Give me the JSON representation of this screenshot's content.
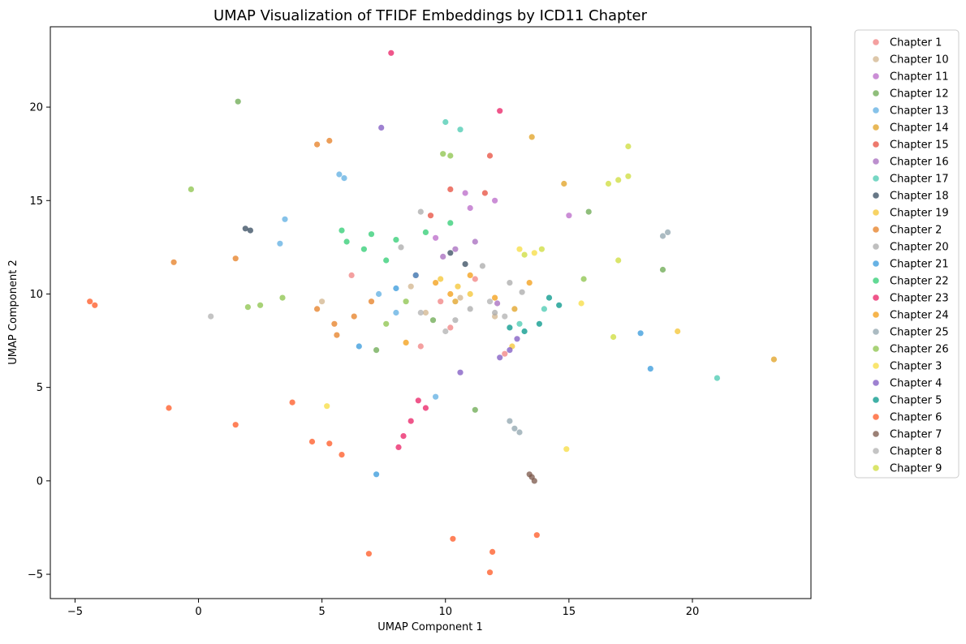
{
  "chart_data": {
    "type": "scatter",
    "title": "UMAP Visualization of TFIDF Embeddings by ICD11 Chapter",
    "xlabel": "UMAP Component 1",
    "ylabel": "UMAP Component 2",
    "xlim": [
      -6.0,
      24.8
    ],
    "ylim": [
      -6.3,
      24.3
    ],
    "xticks": [
      -5,
      0,
      5,
      10,
      15,
      20
    ],
    "yticks": [
      -5,
      0,
      5,
      10,
      15,
      20
    ],
    "grid": false,
    "legend_position": "outside-right",
    "series": [
      {
        "name": "Chapter 1",
        "color": "#F08080",
        "points": [
          [
            9.8,
            9.6
          ],
          [
            10.2,
            8.2
          ],
          [
            6.2,
            11.0
          ],
          [
            12.4,
            6.8
          ],
          [
            9.0,
            7.2
          ],
          [
            11.2,
            10.8
          ]
        ]
      },
      {
        "name": "Chapter 10",
        "color": "#D2B48C",
        "points": [
          [
            9.2,
            9.0
          ],
          [
            10.6,
            9.8
          ],
          [
            5.0,
            9.6
          ],
          [
            12.0,
            8.8
          ],
          [
            8.6,
            10.4
          ]
        ]
      },
      {
        "name": "Chapter 11",
        "color": "#BA68C8",
        "points": [
          [
            12.0,
            15.0
          ],
          [
            11.0,
            14.6
          ],
          [
            10.8,
            15.4
          ],
          [
            15.0,
            14.2
          ],
          [
            9.6,
            13.0
          ]
        ]
      },
      {
        "name": "Chapter 12",
        "color": "#6AA84F",
        "points": [
          [
            1.6,
            20.3
          ],
          [
            11.2,
            3.8
          ],
          [
            15.8,
            14.4
          ],
          [
            18.8,
            11.3
          ],
          [
            9.5,
            8.6
          ],
          [
            7.2,
            7.0
          ]
        ]
      },
      {
        "name": "Chapter 13",
        "color": "#5DADE2",
        "points": [
          [
            5.7,
            16.4
          ],
          [
            5.9,
            16.2
          ],
          [
            3.5,
            14.0
          ],
          [
            3.3,
            12.7
          ],
          [
            7.3,
            10.0
          ],
          [
            8.0,
            9.0
          ],
          [
            9.6,
            4.5
          ]
        ]
      },
      {
        "name": "Chapter 14",
        "color": "#E0A020",
        "points": [
          [
            13.5,
            18.4
          ],
          [
            12.8,
            9.2
          ],
          [
            10.4,
            9.6
          ],
          [
            23.3,
            6.5
          ],
          [
            14.8,
            15.9
          ]
        ]
      },
      {
        "name": "Chapter 15",
        "color": "#E74C3C",
        "points": [
          [
            11.8,
            17.4
          ],
          [
            10.2,
            15.6
          ],
          [
            11.6,
            15.4
          ],
          [
            9.4,
            14.2
          ],
          [
            8.8,
            11.0
          ]
        ]
      },
      {
        "name": "Chapter 16",
        "color": "#A569BD",
        "points": [
          [
            10.4,
            12.4
          ],
          [
            11.2,
            12.8
          ],
          [
            9.9,
            12.0
          ],
          [
            12.1,
            9.5
          ]
        ]
      },
      {
        "name": "Chapter 17",
        "color": "#48C9B0",
        "points": [
          [
            10.0,
            19.2
          ],
          [
            10.6,
            18.8
          ],
          [
            14.0,
            9.2
          ],
          [
            13.0,
            8.4
          ],
          [
            21.0,
            5.5
          ]
        ]
      },
      {
        "name": "Chapter 18",
        "color": "#34495E",
        "points": [
          [
            1.9,
            13.5
          ],
          [
            2.1,
            13.4
          ],
          [
            10.2,
            12.2
          ],
          [
            10.8,
            11.6
          ]
        ]
      },
      {
        "name": "Chapter 19",
        "color": "#F4C430",
        "points": [
          [
            10.5,
            10.4
          ],
          [
            12.7,
            7.2
          ],
          [
            11.0,
            10.0
          ],
          [
            9.8,
            10.8
          ],
          [
            19.4,
            8.0
          ]
        ]
      },
      {
        "name": "Chapter 2",
        "color": "#E67E22",
        "points": [
          [
            -1.0,
            11.7
          ],
          [
            1.5,
            11.9
          ],
          [
            4.8,
            18.0
          ],
          [
            5.3,
            18.2
          ],
          [
            5.5,
            8.4
          ],
          [
            6.3,
            8.8
          ],
          [
            7.0,
            9.6
          ],
          [
            4.8,
            9.2
          ],
          [
            5.6,
            7.8
          ]
        ]
      },
      {
        "name": "Chapter 20",
        "color": "#A9A9A9",
        "points": [
          [
            11.5,
            11.5
          ],
          [
            12.6,
            10.6
          ],
          [
            10.4,
            8.6
          ],
          [
            12.0,
            9.0
          ],
          [
            13.1,
            10.1
          ],
          [
            11.0,
            9.2
          ],
          [
            8.2,
            12.5
          ],
          [
            9.0,
            14.4
          ]
        ]
      },
      {
        "name": "Chapter 21",
        "color": "#3498DB",
        "points": [
          [
            7.2,
            0.35
          ],
          [
            6.5,
            7.2
          ],
          [
            8.0,
            10.3
          ],
          [
            8.8,
            11.0
          ],
          [
            17.9,
            7.9
          ],
          [
            18.3,
            6.0
          ]
        ]
      },
      {
        "name": "Chapter 22",
        "color": "#2ECC71",
        "points": [
          [
            6.0,
            12.8
          ],
          [
            7.0,
            13.2
          ],
          [
            8.0,
            12.9
          ],
          [
            9.2,
            13.3
          ],
          [
            10.2,
            13.8
          ],
          [
            6.7,
            12.4
          ],
          [
            7.6,
            11.8
          ],
          [
            5.8,
            13.4
          ]
        ]
      },
      {
        "name": "Chapter 23",
        "color": "#E91E63",
        "points": [
          [
            7.8,
            22.9
          ],
          [
            12.2,
            19.8
          ],
          [
            8.6,
            3.2
          ],
          [
            8.3,
            2.4
          ],
          [
            9.2,
            3.9
          ],
          [
            8.9,
            4.3
          ],
          [
            8.1,
            1.8
          ]
        ]
      },
      {
        "name": "Chapter 24",
        "color": "#F39C12",
        "points": [
          [
            10.2,
            10.0
          ],
          [
            11.0,
            11.0
          ],
          [
            9.6,
            10.6
          ],
          [
            12.0,
            9.8
          ],
          [
            8.4,
            7.4
          ],
          [
            13.4,
            10.6
          ]
        ]
      },
      {
        "name": "Chapter 25",
        "color": "#8FA4AE",
        "points": [
          [
            12.6,
            3.2
          ],
          [
            12.8,
            2.8
          ],
          [
            13.0,
            2.6
          ],
          [
            19.0,
            13.3
          ],
          [
            18.8,
            13.1
          ]
        ]
      },
      {
        "name": "Chapter 26",
        "color": "#8BC34A",
        "points": [
          [
            2.0,
            9.3
          ],
          [
            2.5,
            9.4
          ],
          [
            3.4,
            9.8
          ],
          [
            -0.3,
            15.6
          ],
          [
            9.9,
            17.5
          ],
          [
            10.2,
            17.4
          ],
          [
            7.6,
            8.4
          ],
          [
            8.4,
            9.6
          ],
          [
            15.6,
            10.8
          ]
        ]
      },
      {
        "name": "Chapter 3",
        "color": "#F7DC3F",
        "points": [
          [
            13.0,
            12.4
          ],
          [
            13.6,
            12.2
          ],
          [
            5.2,
            4.0
          ],
          [
            15.5,
            9.5
          ],
          [
            14.9,
            1.7
          ]
        ]
      },
      {
        "name": "Chapter 4",
        "color": "#7E57C2",
        "points": [
          [
            7.4,
            18.9
          ],
          [
            10.6,
            5.8
          ],
          [
            12.6,
            7.0
          ],
          [
            12.2,
            6.6
          ],
          [
            12.9,
            7.6
          ]
        ]
      },
      {
        "name": "Chapter 5",
        "color": "#009688",
        "points": [
          [
            14.2,
            9.8
          ],
          [
            14.6,
            9.4
          ],
          [
            13.8,
            8.4
          ],
          [
            12.6,
            8.2
          ],
          [
            13.2,
            8.0
          ]
        ]
      },
      {
        "name": "Chapter 6",
        "color": "#FF5722",
        "points": [
          [
            -4.4,
            9.6
          ],
          [
            -4.2,
            9.4
          ],
          [
            3.8,
            4.2
          ],
          [
            5.8,
            1.4
          ],
          [
            4.6,
            2.1
          ],
          [
            5.3,
            2.0
          ],
          [
            6.9,
            -3.9
          ],
          [
            10.3,
            -3.1
          ],
          [
            11.8,
            -4.9
          ],
          [
            11.9,
            -3.8
          ],
          [
            13.7,
            -2.9
          ],
          [
            -1.2,
            3.9
          ],
          [
            1.5,
            3.0
          ]
        ]
      },
      {
        "name": "Chapter 7",
        "color": "#795548",
        "points": [
          [
            13.4,
            0.35
          ],
          [
            13.6,
            0.0
          ],
          [
            13.5,
            0.2
          ]
        ]
      },
      {
        "name": "Chapter 8",
        "color": "#B0B0B0",
        "points": [
          [
            0.5,
            8.8
          ],
          [
            11.8,
            9.6
          ],
          [
            9.0,
            9.0
          ],
          [
            12.4,
            8.8
          ],
          [
            10.0,
            8.0
          ]
        ]
      },
      {
        "name": "Chapter 9",
        "color": "#CDDC39",
        "points": [
          [
            17.4,
            17.9
          ],
          [
            16.6,
            15.9
          ],
          [
            17.0,
            16.1
          ],
          [
            17.4,
            16.3
          ],
          [
            13.2,
            12.1
          ],
          [
            13.9,
            12.4
          ],
          [
            16.8,
            7.7
          ],
          [
            17.0,
            11.8
          ]
        ]
      }
    ]
  }
}
